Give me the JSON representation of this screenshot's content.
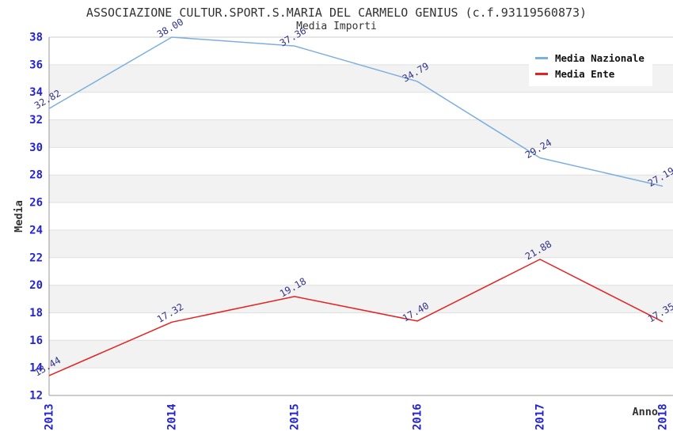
{
  "title": "ASSOCIAZIONE CULTUR.SPORT.S.MARIA DEL CARMELO GENIUS (c.f.93119560873)",
  "subtitle": "Media Importi",
  "chart_data": {
    "type": "line",
    "x": [
      "2013",
      "2014",
      "2015",
      "2016",
      "2017",
      "2018"
    ],
    "xlabel": "Anno",
    "ylabel": "Media",
    "ylim": [
      12,
      38
    ],
    "ytick_step": 2,
    "grid": "horizontal-bands-alternating",
    "legend_position": "top-right",
    "point_labels_visible": true,
    "point_label_rotation_deg": -30,
    "series": [
      {
        "name": "Media Nazionale",
        "color": "#7cafdf",
        "values": [
          32.82,
          38.0,
          37.36,
          34.79,
          29.24,
          27.19
        ]
      },
      {
        "name": "Media Ente",
        "color": "#e42222",
        "values": [
          13.44,
          17.32,
          19.18,
          17.4,
          21.88,
          17.35
        ]
      }
    ]
  },
  "colors": {
    "band_gray": "#f2f2f2",
    "band_white": "#ffffff",
    "gridline": "#e0e0e0",
    "axis_line": "#999999",
    "top_border": "#cccccc",
    "tick_label": "#2424cf",
    "axis_title": "#333333",
    "point_label": "#333388",
    "title_text": "#333333"
  }
}
